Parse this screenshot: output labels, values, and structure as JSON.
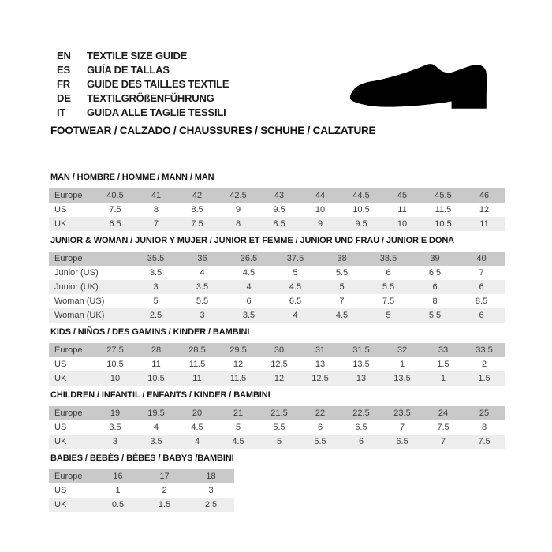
{
  "header": {
    "languages": [
      {
        "code": "EN",
        "label": "TEXTILE SIZE GUIDE"
      },
      {
        "code": "ES",
        "label": "GUÍA DE TALLAS"
      },
      {
        "code": "FR",
        "label": "GUIDE DES TAILLES TEXTILE"
      },
      {
        "code": "DE",
        "label": "TEXTILGRÖßENFÜHRUNG"
      },
      {
        "code": "IT",
        "label": "GUIDA ALLE TAGLIE TESSILI"
      }
    ],
    "category_line": "FOOTWEAR / CALZADO / CHAUSSURES / SCHUHE / CALZATURE",
    "shoe_icon": "shoe-silhouette"
  },
  "colors": {
    "header_row_bg": "#c9c9c9",
    "alt_row_bg": "#ededed",
    "table_text": "#3d3d3d"
  },
  "size_tables": [
    {
      "title": "MAN / HOMBRE / HOMME / MANN / MAN",
      "rows": [
        {
          "label": "Europe",
          "values": [
            "40.5",
            "41",
            "42",
            "42.5",
            "43",
            "44",
            "44.5",
            "45",
            "45.5",
            "46"
          ]
        },
        {
          "label": "US",
          "values": [
            "7.5",
            "8",
            "8.5",
            "9",
            "9.5",
            "10",
            "10.5",
            "11",
            "11.5",
            "12"
          ]
        },
        {
          "label": "UK",
          "values": [
            "6.5",
            "7",
            "7.5",
            "8",
            "8.5",
            "9",
            "9.5",
            "10",
            "10.5",
            "11"
          ]
        }
      ]
    },
    {
      "title": "JUNIOR & WOMAN / JUNIOR Y MUJER / JUNIOR ET FEMME / JUNIOR UND FRAU / JUNIOR E DONA",
      "rows": [
        {
          "label": "Europe",
          "values": [
            "35.5",
            "36",
            "36.5",
            "37.5",
            "38",
            "38.5",
            "39",
            "40"
          ]
        },
        {
          "label": "Junior (US)",
          "values": [
            "3.5",
            "4",
            "4.5",
            "5",
            "5.5",
            "6",
            "6.5",
            "7"
          ]
        },
        {
          "label": "Junior (UK)",
          "values": [
            "3",
            "3.5",
            "4",
            "4.5",
            "5",
            "5.5",
            "6",
            "6"
          ]
        },
        {
          "label": "Woman (US)",
          "values": [
            "5",
            "5.5",
            "6",
            "6.5",
            "7",
            "7.5",
            "8",
            "8.5"
          ]
        },
        {
          "label": "Woman (UK)",
          "values": [
            "2.5",
            "3",
            "3.5",
            "4",
            "4.5",
            "5",
            "5.5",
            "6"
          ]
        }
      ]
    },
    {
      "title": "KIDS / NIÑOS / DES GAMINS / KINDER / BAMBINI",
      "rows": [
        {
          "label": "Europe",
          "values": [
            "27.5",
            "28",
            "28.5",
            "29.5",
            "30",
            "31",
            "31.5",
            "32",
            "33",
            "33.5"
          ]
        },
        {
          "label": "US",
          "values": [
            "10.5",
            "11",
            "11.5",
            "12",
            "12.5",
            "13",
            "13.5",
            "1",
            "1.5",
            "2"
          ]
        },
        {
          "label": "UK",
          "values": [
            "10",
            "10.5",
            "11",
            "11.5",
            "12",
            "12.5",
            "13",
            "13.5",
            "1",
            "1.5"
          ]
        }
      ]
    },
    {
      "title": "CHILDREN / INFANTIL / ENFANTS / KINDER / BAMBINI",
      "rows": [
        {
          "label": "Europe",
          "values": [
            "19",
            "19.5",
            "20",
            "21",
            "21.5",
            "22",
            "22.5",
            "23.5",
            "24",
            "25"
          ]
        },
        {
          "label": "US",
          "values": [
            "3.5",
            "4",
            "4.5",
            "5",
            "5.5",
            "6",
            "6.5",
            "7",
            "7.5",
            "8"
          ]
        },
        {
          "label": "UK",
          "values": [
            "3",
            "3.5",
            "4",
            "4.5",
            "5",
            "5.5",
            "6",
            "6.5",
            "7",
            "7.5"
          ]
        }
      ]
    },
    {
      "title": "BABIES  / BEBÉS / BÉBÉS / BABYS /BAMBINI",
      "rows": [
        {
          "label": "Europe",
          "values": [
            "16",
            "17",
            "18"
          ]
        },
        {
          "label": "US",
          "values": [
            "1",
            "2",
            "3"
          ]
        },
        {
          "label": "UK",
          "values": [
            "0.5",
            "1.5",
            "2.5"
          ]
        }
      ]
    }
  ]
}
